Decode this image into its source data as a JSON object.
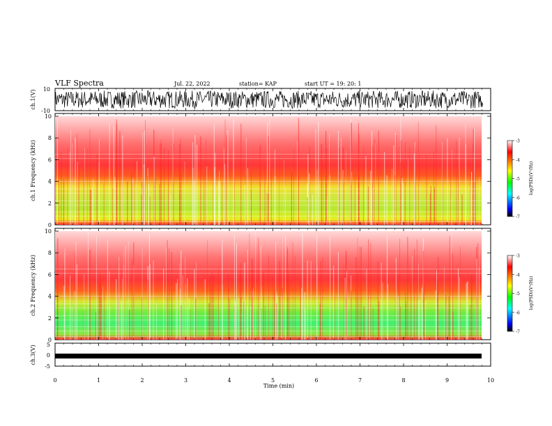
{
  "header": {
    "title": "VLF Spectra",
    "date": "Jul. 22, 2022",
    "station": "station= KAP",
    "start": "start UT = 19: 20: 1"
  },
  "colorbar": {
    "label": "log(PSD)(V²/Hz)",
    "ticks": [
      "-3",
      "-4",
      "-5",
      "-6",
      "-7"
    ],
    "colors": [
      "#000000",
      "#0000ff",
      "#00ffff",
      "#00ff00",
      "#ffff00",
      "#ff8000",
      "#ff0000",
      "#ffffff"
    ]
  },
  "chart_data": [
    {
      "type": "line",
      "panel": "ch1-waveform",
      "ylabel": "ch.1(V)",
      "ylim": [
        -10,
        10
      ],
      "yticks": [
        "10",
        "-10"
      ],
      "xlim": [
        0,
        10
      ],
      "description_values": {
        "typical_range": [
          -8,
          8
        ]
      }
    },
    {
      "type": "heatmap",
      "panel": "ch1-spectrogram",
      "ylabel": "ch.1 Frequency (kHz)",
      "ylim": [
        0,
        10
      ],
      "yticks": [
        "0",
        "2",
        "4",
        "6",
        "8",
        "10"
      ],
      "xlim": [
        0,
        9.82
      ],
      "zlim": [
        -7,
        -3
      ],
      "profile_log_psd": [
        {
          "freq_khz": 0.5,
          "level": -3.5
        },
        {
          "freq_khz": 1.5,
          "level": -4.7
        },
        {
          "freq_khz": 2.5,
          "level": -4.6
        },
        {
          "freq_khz": 3.5,
          "level": -4.4
        },
        {
          "freq_khz": 4.5,
          "level": -4.0
        },
        {
          "freq_khz": 6,
          "level": -3.4
        },
        {
          "freq_khz": 8,
          "level": -3.1
        },
        {
          "freq_khz": 10,
          "level": -3.0
        }
      ]
    },
    {
      "type": "heatmap",
      "panel": "ch2-spectrogram",
      "ylabel": "ch.2 Frequency (kHz)",
      "ylim": [
        0,
        10
      ],
      "yticks": [
        "0",
        "2",
        "4",
        "6",
        "8",
        "10"
      ],
      "xlim": [
        0,
        9.82
      ],
      "zlim": [
        -7,
        -3
      ],
      "profile_log_psd": [
        {
          "freq_khz": 0.5,
          "level": -3.6
        },
        {
          "freq_khz": 1.5,
          "level": -4.9
        },
        {
          "freq_khz": 2.5,
          "level": -5.0
        },
        {
          "freq_khz": 3.5,
          "level": -4.6
        },
        {
          "freq_khz": 4.5,
          "level": -4.1
        },
        {
          "freq_khz": 6,
          "level": -3.4
        },
        {
          "freq_khz": 8,
          "level": -3.1
        },
        {
          "freq_khz": 10,
          "level": -3.0
        }
      ]
    },
    {
      "type": "line",
      "panel": "ch3-waveform",
      "ylabel": "ch.3(V)",
      "ylim": [
        -5,
        5
      ],
      "yticks": [
        "5",
        "0",
        "-5"
      ],
      "xlim": [
        0,
        10
      ],
      "description_values": {
        "typical_range": [
          -0.3,
          0.3
        ],
        "offset": -0.9
      }
    }
  ],
  "xaxis": {
    "label": "Time (min)",
    "ticks": [
      "0",
      "1",
      "2",
      "3",
      "4",
      "5",
      "6",
      "7",
      "8",
      "9",
      "10"
    ],
    "range": [
      0,
      10
    ]
  }
}
